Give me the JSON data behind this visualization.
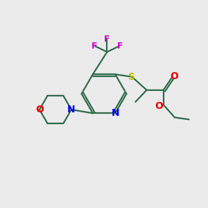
{
  "background_color": "#ebebeb",
  "atom_colors": {
    "C": "#2d6b4a",
    "N": "#0000ee",
    "O": "#ee0000",
    "S": "#bbbb00",
    "F": "#cc00cc"
  },
  "bond_color": "#2d6b4a",
  "figsize": [
    3.0,
    3.0
  ],
  "dpi": 100
}
